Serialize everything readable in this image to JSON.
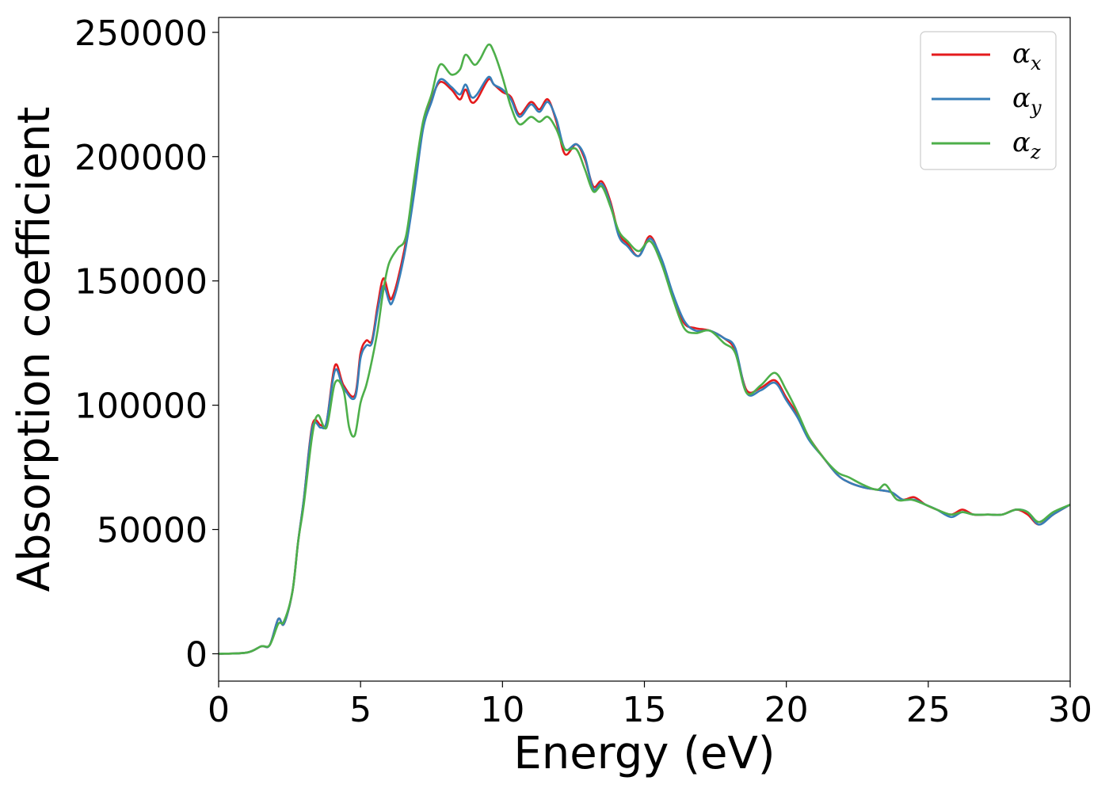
{
  "chart_data": {
    "type": "line",
    "xlabel": "Energy (eV)",
    "ylabel": "Absorption coefficient",
    "xlim": [
      0,
      30
    ],
    "ylim": [
      -11000,
      256000
    ],
    "xticks": [
      0,
      5,
      10,
      15,
      20,
      25,
      30
    ],
    "xtick_labels": [
      "0",
      "5",
      "10",
      "15",
      "20",
      "25",
      "30"
    ],
    "yticks": [
      0,
      50000,
      100000,
      150000,
      200000,
      250000
    ],
    "ytick_labels": [
      "0",
      "50000",
      "100000",
      "150000",
      "200000",
      "250000"
    ],
    "grid": false,
    "legend_position": "top-right",
    "series": [
      {
        "name": "α",
        "name_sub": "x",
        "color": "#e41a1c",
        "points": [
          [
            0,
            0
          ],
          [
            1,
            500
          ],
          [
            1.5,
            3000
          ],
          [
            1.8,
            3500
          ],
          [
            2.1,
            14000
          ],
          [
            2.3,
            12000
          ],
          [
            2.6,
            25000
          ],
          [
            2.8,
            45000
          ],
          [
            3.0,
            62000
          ],
          [
            3.3,
            92000
          ],
          [
            3.6,
            92000
          ],
          [
            3.8,
            93000
          ],
          [
            4.1,
            116000
          ],
          [
            4.4,
            108000
          ],
          [
            4.8,
            104000
          ],
          [
            5.0,
            121000
          ],
          [
            5.2,
            126000
          ],
          [
            5.4,
            126000
          ],
          [
            5.6,
            140000
          ],
          [
            5.8,
            151000
          ],
          [
            6.0,
            144000
          ],
          [
            6.1,
            143000
          ],
          [
            6.3,
            150000
          ],
          [
            6.6,
            166000
          ],
          [
            6.9,
            188000
          ],
          [
            7.2,
            212000
          ],
          [
            7.5,
            223000
          ],
          [
            7.8,
            230000
          ],
          [
            8.2,
            227000
          ],
          [
            8.5,
            223000
          ],
          [
            8.7,
            227000
          ],
          [
            8.9,
            222000
          ],
          [
            9.1,
            223000
          ],
          [
            9.5,
            231000
          ],
          [
            9.7,
            229000
          ],
          [
            10.0,
            226000
          ],
          [
            10.3,
            224000
          ],
          [
            10.6,
            217000
          ],
          [
            11.0,
            222000
          ],
          [
            11.3,
            219000
          ],
          [
            11.6,
            223000
          ],
          [
            11.9,
            214000
          ],
          [
            12.2,
            201000
          ],
          [
            12.6,
            205000
          ],
          [
            12.9,
            199000
          ],
          [
            13.2,
            188000
          ],
          [
            13.5,
            190000
          ],
          [
            13.8,
            182000
          ],
          [
            14.1,
            169000
          ],
          [
            14.4,
            165000
          ],
          [
            14.8,
            160000
          ],
          [
            15.2,
            168000
          ],
          [
            15.6,
            158000
          ],
          [
            16.0,
            144000
          ],
          [
            16.4,
            133000
          ],
          [
            16.8,
            131000
          ],
          [
            17.3,
            130000
          ],
          [
            17.8,
            127000
          ],
          [
            18.2,
            122000
          ],
          [
            18.6,
            106000
          ],
          [
            19.1,
            107000
          ],
          [
            19.6,
            110000
          ],
          [
            20.0,
            103000
          ],
          [
            20.4,
            96000
          ],
          [
            20.8,
            87000
          ],
          [
            21.3,
            79000
          ],
          [
            21.8,
            72000
          ],
          [
            22.2,
            69000
          ],
          [
            22.7,
            67000
          ],
          [
            23.2,
            66000
          ],
          [
            23.7,
            65000
          ],
          [
            24.1,
            62000
          ],
          [
            24.5,
            63000
          ],
          [
            24.9,
            60000
          ],
          [
            25.3,
            58000
          ],
          [
            25.8,
            56000
          ],
          [
            26.2,
            58000
          ],
          [
            26.6,
            56000
          ],
          [
            27.1,
            56000
          ],
          [
            27.6,
            56000
          ],
          [
            28.1,
            58000
          ],
          [
            28.5,
            56000
          ],
          [
            28.9,
            52000
          ],
          [
            29.4,
            56000
          ],
          [
            30.0,
            60000
          ]
        ]
      },
      {
        "name": "α",
        "name_sub": "y",
        "color": "#377eb8",
        "points": [
          [
            0,
            0
          ],
          [
            1,
            500
          ],
          [
            1.5,
            3000
          ],
          [
            1.8,
            3500
          ],
          [
            2.1,
            14000
          ],
          [
            2.3,
            12000
          ],
          [
            2.6,
            25000
          ],
          [
            2.8,
            45000
          ],
          [
            3.0,
            62000
          ],
          [
            3.3,
            91000
          ],
          [
            3.6,
            91000
          ],
          [
            3.8,
            93000
          ],
          [
            4.1,
            114000
          ],
          [
            4.4,
            107000
          ],
          [
            4.8,
            103000
          ],
          [
            5.0,
            119000
          ],
          [
            5.2,
            124000
          ],
          [
            5.4,
            125000
          ],
          [
            5.6,
            138000
          ],
          [
            5.8,
            148000
          ],
          [
            6.0,
            142000
          ],
          [
            6.1,
            141000
          ],
          [
            6.3,
            148000
          ],
          [
            6.6,
            164000
          ],
          [
            6.9,
            186000
          ],
          [
            7.2,
            211000
          ],
          [
            7.5,
            222000
          ],
          [
            7.8,
            231000
          ],
          [
            8.2,
            228000
          ],
          [
            8.5,
            225000
          ],
          [
            8.7,
            229000
          ],
          [
            8.9,
            224000
          ],
          [
            9.1,
            225000
          ],
          [
            9.5,
            232000
          ],
          [
            9.7,
            229000
          ],
          [
            10.0,
            227000
          ],
          [
            10.3,
            223000
          ],
          [
            10.6,
            216000
          ],
          [
            11.0,
            221000
          ],
          [
            11.3,
            218000
          ],
          [
            11.6,
            222000
          ],
          [
            11.9,
            215000
          ],
          [
            12.2,
            203000
          ],
          [
            12.6,
            205000
          ],
          [
            12.9,
            200000
          ],
          [
            13.2,
            187000
          ],
          [
            13.5,
            189000
          ],
          [
            13.8,
            181000
          ],
          [
            14.1,
            168000
          ],
          [
            14.4,
            164000
          ],
          [
            14.8,
            160000
          ],
          [
            15.2,
            167000
          ],
          [
            15.6,
            159000
          ],
          [
            16.0,
            145000
          ],
          [
            16.4,
            134000
          ],
          [
            16.8,
            130000
          ],
          [
            17.3,
            130000
          ],
          [
            17.8,
            127000
          ],
          [
            18.2,
            123000
          ],
          [
            18.6,
            105000
          ],
          [
            19.1,
            106000
          ],
          [
            19.6,
            109000
          ],
          [
            20.0,
            102000
          ],
          [
            20.4,
            95000
          ],
          [
            20.8,
            86000
          ],
          [
            21.3,
            79000
          ],
          [
            21.8,
            72000
          ],
          [
            22.2,
            69000
          ],
          [
            22.7,
            67000
          ],
          [
            23.2,
            66000
          ],
          [
            23.7,
            65000
          ],
          [
            24.1,
            62000
          ],
          [
            24.5,
            62000
          ],
          [
            24.9,
            60000
          ],
          [
            25.3,
            58000
          ],
          [
            25.8,
            55000
          ],
          [
            26.2,
            57000
          ],
          [
            26.6,
            56000
          ],
          [
            27.1,
            56000
          ],
          [
            27.6,
            56000
          ],
          [
            28.1,
            58000
          ],
          [
            28.5,
            57000
          ],
          [
            28.9,
            52000
          ],
          [
            29.4,
            56000
          ],
          [
            30.0,
            60000
          ]
        ]
      },
      {
        "name": "α",
        "name_sub": "z",
        "color": "#4daf4a",
        "points": [
          [
            0,
            0
          ],
          [
            1,
            500
          ],
          [
            1.5,
            3000
          ],
          [
            1.8,
            3500
          ],
          [
            2.1,
            12000
          ],
          [
            2.3,
            13000
          ],
          [
            2.6,
            25000
          ],
          [
            2.8,
            45000
          ],
          [
            3.0,
            60000
          ],
          [
            3.3,
            88000
          ],
          [
            3.5,
            96000
          ],
          [
            3.8,
            91000
          ],
          [
            4.1,
            109000
          ],
          [
            4.4,
            106000
          ],
          [
            4.6,
            91000
          ],
          [
            4.8,
            88000
          ],
          [
            5.0,
            101000
          ],
          [
            5.2,
            108000
          ],
          [
            5.4,
            118000
          ],
          [
            5.6,
            130000
          ],
          [
            5.8,
            146000
          ],
          [
            6.0,
            157000
          ],
          [
            6.3,
            163000
          ],
          [
            6.6,
            168000
          ],
          [
            6.9,
            192000
          ],
          [
            7.2,
            214000
          ],
          [
            7.5,
            225000
          ],
          [
            7.8,
            237000
          ],
          [
            8.2,
            233000
          ],
          [
            8.5,
            235000
          ],
          [
            8.7,
            241000
          ],
          [
            9.0,
            237000
          ],
          [
            9.2,
            239000
          ],
          [
            9.5,
            245000
          ],
          [
            9.7,
            242000
          ],
          [
            10.0,
            232000
          ],
          [
            10.3,
            220000
          ],
          [
            10.6,
            213000
          ],
          [
            11.0,
            216000
          ],
          [
            11.3,
            214000
          ],
          [
            11.6,
            216000
          ],
          [
            11.9,
            211000
          ],
          [
            12.2,
            203000
          ],
          [
            12.6,
            203000
          ],
          [
            12.9,
            195000
          ],
          [
            13.2,
            186000
          ],
          [
            13.5,
            188000
          ],
          [
            13.8,
            180000
          ],
          [
            14.1,
            170000
          ],
          [
            14.4,
            166000
          ],
          [
            14.8,
            162000
          ],
          [
            15.2,
            166000
          ],
          [
            15.6,
            157000
          ],
          [
            16.0,
            143000
          ],
          [
            16.4,
            131000
          ],
          [
            16.8,
            129000
          ],
          [
            17.3,
            130000
          ],
          [
            17.8,
            125000
          ],
          [
            18.2,
            121000
          ],
          [
            18.6,
            105000
          ],
          [
            19.1,
            108000
          ],
          [
            19.6,
            113000
          ],
          [
            20.0,
            106000
          ],
          [
            20.4,
            97000
          ],
          [
            20.8,
            87000
          ],
          [
            21.3,
            79000
          ],
          [
            21.8,
            73000
          ],
          [
            22.2,
            71000
          ],
          [
            22.7,
            68000
          ],
          [
            23.2,
            66000
          ],
          [
            23.5,
            68000
          ],
          [
            23.9,
            62000
          ],
          [
            24.4,
            62000
          ],
          [
            24.9,
            60000
          ],
          [
            25.3,
            58000
          ],
          [
            25.8,
            56000
          ],
          [
            26.2,
            57000
          ],
          [
            26.6,
            56000
          ],
          [
            27.1,
            56000
          ],
          [
            27.6,
            56000
          ],
          [
            28.1,
            58000
          ],
          [
            28.5,
            57000
          ],
          [
            28.9,
            53000
          ],
          [
            29.4,
            57000
          ],
          [
            30.0,
            60000
          ]
        ]
      }
    ]
  }
}
